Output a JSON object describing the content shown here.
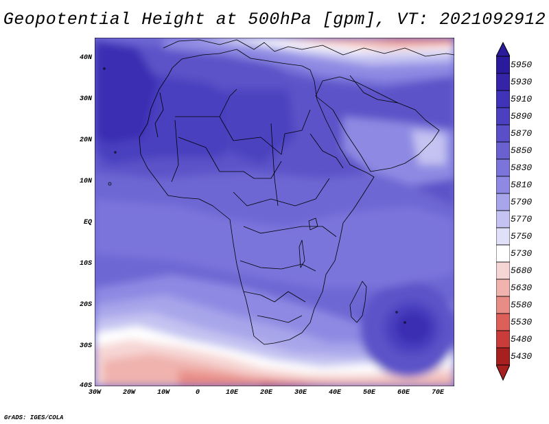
{
  "title": "Geopotential Height at 500hPa [gpm], VT: 2021092912",
  "credit": "GrADS: IGES/COLA",
  "axes": {
    "lat_ticks": [
      "40N",
      "30N",
      "20N",
      "10N",
      "EQ",
      "10S",
      "20S",
      "30S",
      "40S"
    ],
    "lon_ticks": [
      "30W",
      "20W",
      "10W",
      "0",
      "10E",
      "20E",
      "30E",
      "40E",
      "50E",
      "60E",
      "70E"
    ]
  },
  "colorbar": {
    "levels": [
      "5950",
      "5930",
      "5910",
      "5890",
      "5870",
      "5850",
      "5830",
      "5810",
      "5790",
      "5770",
      "5750",
      "5730",
      "5680",
      "5630",
      "5580",
      "5530",
      "5480",
      "5430"
    ],
    "colors": [
      "#2a1a9c",
      "#3523a8",
      "#3f33b8",
      "#4a40c0",
      "#5a4fc8",
      "#6a61d0",
      "#7a74db",
      "#8e8ae3",
      "#a8a6ea",
      "#c4c3f1",
      "#e0e0f8",
      "#ffffff",
      "#f6d6d4",
      "#f0b3ae",
      "#e88c86",
      "#dc5f5a",
      "#c93c3a",
      "#a81f1f"
    ],
    "top_arrow_color": "#2a1a9c",
    "bottom_arrow_color": "#a81f1f"
  }
}
